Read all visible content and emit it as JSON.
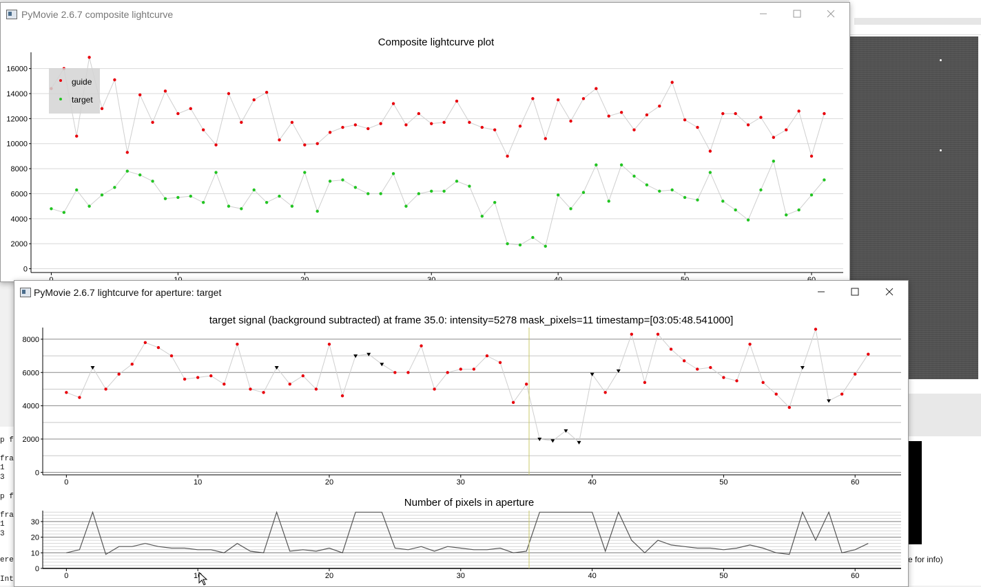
{
  "background": {
    "info_text": "e for info)",
    "left_text": [
      {
        "text": "p f",
        "top": 634
      },
      {
        "text": "fra",
        "top": 661
      },
      {
        "text": "1",
        "top": 674
      },
      {
        "text": "3",
        "top": 688
      },
      {
        "text": "p f",
        "top": 716
      },
      {
        "text": "fra",
        "top": 743
      },
      {
        "text": "1",
        "top": 756
      },
      {
        "text": "3",
        "top": 770
      },
      {
        "text": "ere",
        "top": 808
      },
      {
        "text": "Inte",
        "top": 836
      }
    ],
    "left_icon": "A"
  },
  "composite_window": {
    "title": "PyMovie 2.6.7 composite lightcurve",
    "plot_title": "Composite lightcurve plot",
    "legend": [
      {
        "label": "guide",
        "color": "#e8000b"
      },
      {
        "label": "target",
        "color": "#22c422"
      }
    ],
    "chart_data": {
      "type": "scatter",
      "title": "Composite lightcurve plot",
      "xlim": [
        -1.6,
        62.5
      ],
      "ylim": [
        -300,
        17300
      ],
      "xticks": [
        0,
        10,
        20,
        30,
        40,
        50,
        60
      ],
      "yticks": [
        0,
        2000,
        4000,
        6000,
        8000,
        10000,
        12000,
        14000,
        16000
      ],
      "x": [
        0,
        1,
        2,
        3,
        4,
        5,
        6,
        7,
        8,
        9,
        10,
        11,
        12,
        13,
        14,
        15,
        16,
        17,
        18,
        19,
        20,
        21,
        22,
        23,
        24,
        25,
        26,
        27,
        28,
        29,
        30,
        31,
        32,
        33,
        34,
        35,
        36,
        37,
        38,
        39,
        40,
        41,
        42,
        43,
        44,
        45,
        46,
        47,
        48,
        49,
        50,
        51,
        52,
        53,
        54,
        55,
        56,
        57,
        58,
        59,
        60,
        61
      ],
      "series": [
        {
          "name": "guide",
          "color": "#e8000b",
          "values": [
            14400,
            16000,
            10600,
            16900,
            12800,
            15100,
            9300,
            13900,
            11700,
            14200,
            12400,
            12800,
            11100,
            9900,
            14000,
            11700,
            13500,
            14100,
            10300,
            11700,
            9900,
            10000,
            10900,
            11300,
            11500,
            11200,
            11600,
            13200,
            11500,
            12400,
            11600,
            11700,
            13400,
            11700,
            11300,
            11100,
            9000,
            11400,
            13600,
            10400,
            13500,
            11800,
            13600,
            14400,
            12200,
            12500,
            11100,
            12300,
            13000,
            14900,
            11900,
            11300,
            9400,
            12400,
            12400,
            11500,
            12100,
            10500,
            11100,
            12600,
            9000,
            12400
          ]
        },
        {
          "name": "target",
          "color": "#22c422",
          "values": [
            4800,
            4500,
            6300,
            5000,
            5900,
            6500,
            7800,
            7500,
            7000,
            5600,
            5700,
            5800,
            5300,
            7700,
            5000,
            4800,
            6300,
            5300,
            5800,
            5000,
            7700,
            4600,
            7000,
            7100,
            6500,
            6000,
            6000,
            7600,
            5000,
            6000,
            6200,
            6200,
            7000,
            6600,
            4200,
            5300,
            2000,
            1900,
            2500,
            1800,
            5900,
            4800,
            6100,
            8300,
            5400,
            8300,
            7400,
            6700,
            6200,
            6300,
            5700,
            5500,
            7700,
            5400,
            4700,
            3900,
            6300,
            8600,
            4300,
            4700,
            5900,
            7100
          ]
        }
      ]
    }
  },
  "aperture_window": {
    "title": "PyMovie 2.6.7 lightcurve for aperture: target",
    "signal_title": "target signal (background subtracted) at frame 35.0: intensity=5278 mask_pixels=11 timestamp=[03:05:48.541000]",
    "pixels_title": "Number of pixels in aperture",
    "cursor_frame": 35.2,
    "signal_chart": {
      "type": "scatter",
      "title": "target signal (background subtracted) at frame 35.0: intensity=5278 mask_pixels=11 timestamp=[03:05:48.541000]",
      "xlim": [
        -1.8,
        63.5
      ],
      "ylim": [
        -150,
        8700
      ],
      "xticks": [
        0,
        10,
        20,
        30,
        40,
        50,
        60
      ],
      "yticks": [
        0,
        2000,
        4000,
        6000,
        8000
      ],
      "x": [
        0,
        1,
        2,
        3,
        4,
        5,
        6,
        7,
        8,
        9,
        10,
        11,
        12,
        13,
        14,
        15,
        16,
        17,
        18,
        19,
        20,
        21,
        22,
        23,
        24,
        25,
        26,
        27,
        28,
        29,
        30,
        31,
        32,
        33,
        34,
        35,
        36,
        37,
        38,
        39,
        40,
        41,
        42,
        43,
        44,
        45,
        46,
        47,
        48,
        49,
        50,
        51,
        52,
        53,
        54,
        55,
        56,
        57,
        58,
        59,
        60,
        61
      ],
      "values": [
        4800,
        4500,
        6300,
        5000,
        5900,
        6500,
        7800,
        7500,
        7000,
        5600,
        5700,
        5800,
        5300,
        7700,
        5000,
        4800,
        6300,
        5300,
        5800,
        5000,
        7700,
        4600,
        7000,
        7100,
        6500,
        6000,
        6000,
        7600,
        5000,
        6000,
        6200,
        6200,
        7000,
        6600,
        4200,
        5300,
        2000,
        1900,
        2500,
        1800,
        5900,
        4800,
        6100,
        8300,
        5400,
        8300,
        7400,
        6700,
        6200,
        6300,
        5700,
        5500,
        7700,
        5400,
        4700,
        3900,
        6300,
        8600,
        4300,
        4700,
        5900,
        7100
      ],
      "markers": [
        "dot",
        "dot",
        "triangle",
        "dot",
        "dot",
        "dot",
        "dot",
        "dot",
        "dot",
        "dot",
        "dot",
        "dot",
        "dot",
        "dot",
        "dot",
        "dot",
        "triangle",
        "dot",
        "dot",
        "dot",
        "dot",
        "dot",
        "triangle",
        "triangle",
        "triangle",
        "dot",
        "dot",
        "dot",
        "dot",
        "dot",
        "dot",
        "dot",
        "dot",
        "dot",
        "dot",
        "dot",
        "triangle",
        "triangle",
        "triangle",
        "triangle",
        "triangle",
        "dot",
        "triangle",
        "dot",
        "dot",
        "dot",
        "dot",
        "dot",
        "dot",
        "dot",
        "dot",
        "dot",
        "dot",
        "dot",
        "dot",
        "dot",
        "triangle",
        "dot",
        "triangle",
        "dot",
        "dot",
        "dot"
      ],
      "dot_color": "#e8000b",
      "triangle_color": "#000000"
    },
    "pixels_chart": {
      "type": "line",
      "title": "Number of pixels in aperture",
      "xlim": [
        -1.8,
        63.5
      ],
      "ylim": [
        0,
        37
      ],
      "xticks": [
        0,
        10,
        20,
        30,
        40,
        50,
        60
      ],
      "yticks": [
        0,
        10,
        20,
        30
      ],
      "x": [
        0,
        1,
        2,
        3,
        4,
        5,
        6,
        7,
        8,
        9,
        10,
        11,
        12,
        13,
        14,
        15,
        16,
        17,
        18,
        19,
        20,
        21,
        22,
        23,
        24,
        25,
        26,
        27,
        28,
        29,
        30,
        31,
        32,
        33,
        34,
        35,
        36,
        37,
        38,
        39,
        40,
        41,
        42,
        43,
        44,
        45,
        46,
        47,
        48,
        49,
        50,
        51,
        52,
        53,
        54,
        55,
        56,
        57,
        58,
        59,
        60,
        61
      ],
      "values": [
        10,
        12,
        36,
        9,
        14,
        14,
        16,
        14,
        13,
        13,
        12,
        12,
        10,
        16,
        11,
        10,
        36,
        11,
        12,
        11,
        13,
        10,
        36,
        36,
        36,
        13,
        12,
        14,
        11,
        14,
        13,
        12,
        12,
        13,
        10,
        11,
        36,
        36,
        36,
        36,
        36,
        11,
        36,
        18,
        10,
        18,
        15,
        14,
        13,
        13,
        12,
        13,
        15,
        13,
        10,
        9,
        36,
        18,
        36,
        10,
        12,
        16
      ]
    }
  }
}
